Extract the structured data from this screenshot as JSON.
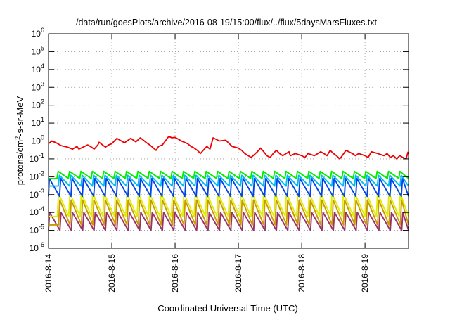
{
  "chart_data": {
    "type": "line",
    "title": "/data/run/goesPlots/archive/2016-08-19/15:00/flux/../flux/5daysMarsFluxes.txt",
    "xlabel": "Coordinated Universal Time (UTC)",
    "ylabel": {
      "base": "protons/cm",
      "sup": "2",
      "rest": "-s-sr-MeV"
    },
    "y_scale": "log",
    "ylim": [
      1e-06,
      1000000.0
    ],
    "xlim": [
      "2016-08-14T00:00",
      "2016-08-19T16:30"
    ],
    "x_ticks": [
      "2016-8-14",
      "2016-8-15",
      "2016-8-16",
      "2016-8-17",
      "2016-8-18",
      "2016-8-19"
    ],
    "y_ticks": [
      {
        "base": "10",
        "exp": "-6"
      },
      {
        "base": "10",
        "exp": "-5"
      },
      {
        "base": "10",
        "exp": "-4"
      },
      {
        "base": "10",
        "exp": "-3"
      },
      {
        "base": "10",
        "exp": "-2"
      },
      {
        "base": "10",
        "exp": "-1"
      },
      {
        "base": "10",
        "exp": "0"
      },
      {
        "base": "10",
        "exp": "1"
      },
      {
        "base": "10",
        "exp": "2"
      },
      {
        "base": "10",
        "exp": "3"
      },
      {
        "base": "10",
        "exp": "4"
      },
      {
        "base": "10",
        "exp": "5"
      },
      {
        "base": "10",
        "exp": "6"
      }
    ],
    "grid": true,
    "series_red": {
      "color": "#ee0000",
      "x_days": [
        0.0,
        0.05,
        0.12,
        0.2,
        0.3,
        0.38,
        0.45,
        0.48,
        0.62,
        0.68,
        0.72,
        0.78,
        0.8,
        0.9,
        0.95,
        1.0,
        1.08,
        1.2,
        1.3,
        1.38,
        1.45,
        1.5,
        1.55,
        1.6,
        1.7,
        1.74,
        1.8,
        1.9,
        1.95,
        2.0,
        2.1,
        2.2,
        2.25,
        2.3,
        2.35,
        2.4,
        2.5,
        2.55,
        2.6,
        2.7,
        2.8,
        2.9,
        3.0,
        3.05,
        3.1,
        3.2,
        3.3,
        3.35,
        3.4,
        3.45,
        3.5,
        3.55,
        3.6,
        3.65,
        3.7,
        3.8,
        3.82,
        3.9,
        4.0,
        4.05,
        4.1,
        4.2,
        4.3,
        4.35,
        4.4,
        4.45,
        4.5,
        4.55,
        4.6,
        4.62,
        4.7,
        4.8,
        4.85,
        4.9,
        5.0,
        5.05,
        5.1,
        5.2,
        5.3,
        5.35,
        5.4,
        5.45,
        5.5,
        5.55,
        5.6,
        5.65,
        5.68
      ],
      "y": [
        0.7,
        1.0,
        0.8,
        0.55,
        0.45,
        0.35,
        0.5,
        0.35,
        0.6,
        0.45,
        0.35,
        0.6,
        0.85,
        0.45,
        0.6,
        0.7,
        1.4,
        0.8,
        1.4,
        0.9,
        1.5,
        1.1,
        0.8,
        0.6,
        0.3,
        0.5,
        0.6,
        1.8,
        1.5,
        1.6,
        1.0,
        0.7,
        0.5,
        0.4,
        0.3,
        0.2,
        0.5,
        0.35,
        1.5,
        1.0,
        1.1,
        0.5,
        0.4,
        0.3,
        0.2,
        0.12,
        0.25,
        0.4,
        0.25,
        0.15,
        0.12,
        0.2,
        0.3,
        0.2,
        0.15,
        0.25,
        0.15,
        0.2,
        0.15,
        0.12,
        0.2,
        0.15,
        0.25,
        0.2,
        0.15,
        0.3,
        0.2,
        0.15,
        0.1,
        0.12,
        0.3,
        0.2,
        0.15,
        0.2,
        0.15,
        0.12,
        0.25,
        0.2,
        0.15,
        0.2,
        0.12,
        0.15,
        0.1,
        0.15,
        0.12,
        0.1,
        0.25
      ]
    },
    "sawtooth_series": [
      {
        "color": "#00ee00",
        "peak": 0.02,
        "trough": 0.008
      },
      {
        "color": "#00bbee",
        "peak": 0.012,
        "trough": 0.003
      },
      {
        "color": "#0044ee",
        "peak": 0.008,
        "trough": 0.0008
      },
      {
        "color": "#ddee00",
        "peak": 0.0012,
        "trough": 6e-05
      },
      {
        "color": "#cc9900",
        "peak": 0.0005,
        "trough": 2e-05
      },
      {
        "color": "#993366",
        "peak": 0.0001,
        "trough": 1e-05
      }
    ],
    "sawtooth_period_days": 0.18
  }
}
